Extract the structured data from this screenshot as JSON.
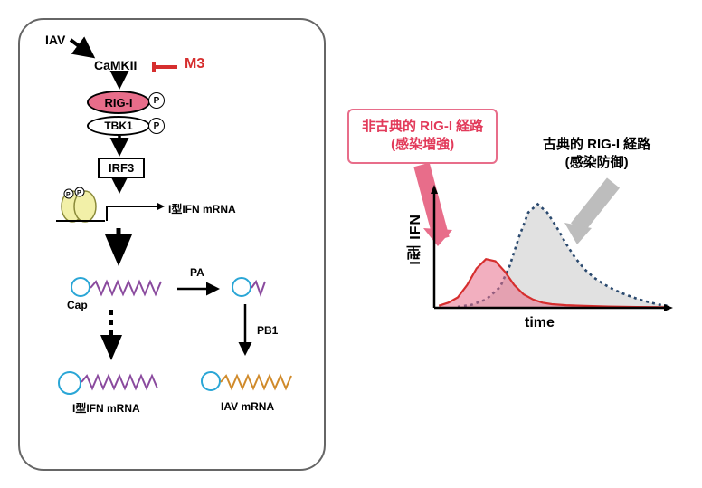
{
  "pathway": {
    "iav": "IAV",
    "camkii": "CaMKII",
    "m3": "M3",
    "rigI": "RIG-I",
    "tbk1": "TBK1",
    "p": "P",
    "irf3": "IRF3",
    "ifn_mrna_top": "I型IFN mRNA",
    "cap": "Cap",
    "pa": "PA",
    "pb1": "PB1",
    "ifn_mrna_bottom": "I型IFN mRNA",
    "iav_mrna": "IAV mRNA"
  },
  "callouts": {
    "noncanonical_l1": "非古典的 RIG-I 経路",
    "noncanonical_l2": "(感染増強)",
    "classical_l1": "古典的 RIG-I 経路",
    "classical_l2": "(感染防御)"
  },
  "chart": {
    "type": "line-area",
    "xlabel": "time",
    "ylabel": "I型 IFN",
    "xlim": [
      0,
      10
    ],
    "ylim": [
      0,
      1.1
    ],
    "background_color": "#ffffff",
    "axis_color": "#000000",
    "series": [
      {
        "name": "noncanonical",
        "stroke": "#d62e2e",
        "fill": "#e86d8a",
        "fill_opacity": 0.55,
        "line_width": 2.2,
        "dash": "none",
        "points": [
          [
            0.2,
            0.02
          ],
          [
            0.6,
            0.05
          ],
          [
            1.0,
            0.1
          ],
          [
            1.4,
            0.22
          ],
          [
            1.8,
            0.38
          ],
          [
            2.2,
            0.47
          ],
          [
            2.6,
            0.45
          ],
          [
            3.0,
            0.35
          ],
          [
            3.4,
            0.22
          ],
          [
            3.8,
            0.13
          ],
          [
            4.2,
            0.08
          ],
          [
            4.6,
            0.05
          ],
          [
            5.0,
            0.035
          ],
          [
            5.6,
            0.025
          ],
          [
            6.4,
            0.018
          ],
          [
            7.4,
            0.012
          ],
          [
            8.6,
            0.008
          ],
          [
            9.8,
            0.005
          ]
        ]
      },
      {
        "name": "classical",
        "stroke": "#2b4a6f",
        "fill": "#c8c8c8",
        "fill_opacity": 0.55,
        "line_width": 2.6,
        "dash": "3,4",
        "points": [
          [
            1.0,
            0.01
          ],
          [
            1.6,
            0.03
          ],
          [
            2.2,
            0.08
          ],
          [
            2.8,
            0.2
          ],
          [
            3.2,
            0.4
          ],
          [
            3.6,
            0.68
          ],
          [
            4.0,
            0.92
          ],
          [
            4.4,
            1.0
          ],
          [
            4.8,
            0.92
          ],
          [
            5.2,
            0.78
          ],
          [
            5.6,
            0.62
          ],
          [
            6.0,
            0.48
          ],
          [
            6.4,
            0.37
          ],
          [
            6.8,
            0.29
          ],
          [
            7.2,
            0.23
          ],
          [
            7.6,
            0.18
          ],
          [
            8.0,
            0.14
          ],
          [
            8.4,
            0.105
          ],
          [
            8.8,
            0.075
          ],
          [
            9.2,
            0.05
          ],
          [
            9.6,
            0.03
          ],
          [
            9.9,
            0.02
          ]
        ]
      }
    ],
    "arrows": {
      "noncanonical": {
        "color": "#e86d8a",
        "width": 18
      },
      "classical": {
        "color": "#bdbdbd",
        "width": 18
      }
    }
  },
  "colors": {
    "rigI_fill": "#e86d8a",
    "m3_red": "#d62e2e",
    "mrna_purple": "#8a4a9e",
    "mrna_orange": "#d08a2a",
    "cap_blue": "#2aa6d6",
    "dimer_fill": "#f2f0a8",
    "dimer_stroke": "#b8b24a"
  }
}
